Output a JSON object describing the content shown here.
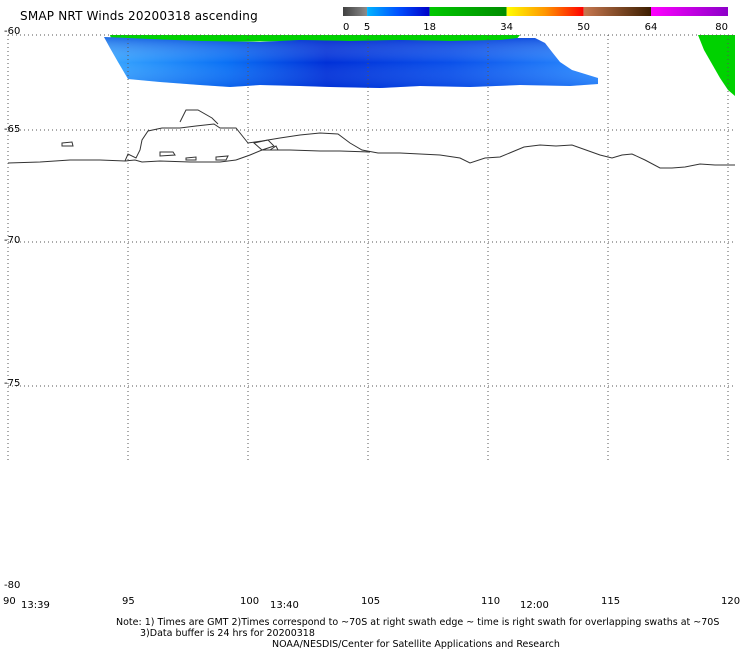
{
  "title": "SMAP NRT Winds 20200318 ascending",
  "colorbar": {
    "ticks": [
      "0",
      "5",
      "18",
      "34",
      "50",
      "64",
      "80"
    ],
    "segments": [
      {
        "from": 0,
        "to": 5,
        "colors": [
          "#404040",
          "#8c8c8c"
        ]
      },
      {
        "from": 5,
        "to": 18,
        "colors": [
          "#00b4ff",
          "#0050ff",
          "#0000c8"
        ]
      },
      {
        "from": 18,
        "to": 34,
        "colors": [
          "#00c800",
          "#008c00"
        ]
      },
      {
        "from": 34,
        "to": 50,
        "colors": [
          "#ffff00",
          "#ff9600",
          "#ff0000"
        ]
      },
      {
        "from": 50,
        "to": 64,
        "colors": [
          "#c87850",
          "#3c1e00"
        ]
      },
      {
        "from": 64,
        "to": 80,
        "colors": [
          "#ff00ff",
          "#8c00c8"
        ]
      }
    ]
  },
  "map": {
    "lat_labels": [
      "-60",
      "-65",
      "-70",
      "-75",
      "-80"
    ],
    "lon_labels": [
      "90",
      "95",
      "100",
      "105",
      "110",
      "115",
      "120"
    ],
    "time_labels": [
      "13:39",
      "13:40",
      "12:00"
    ]
  },
  "colors": {
    "swath_low": "#1ea0ff",
    "swath_mid": "#0a6ef0",
    "swath_high": "#0028d2",
    "swath_green": "#00d200",
    "coast": "#333333",
    "grid": "#555555"
  },
  "notes": {
    "line1": "Note: 1) Times are GMT 2)Times correspond to ~70S at right swath edge ~ time is right swath for overlapping swaths at ~70S",
    "line2": "3)Data buffer is 24 hrs for 20200318",
    "line3": "NOAA/NESDIS/Center for Satellite Applications and Research"
  }
}
